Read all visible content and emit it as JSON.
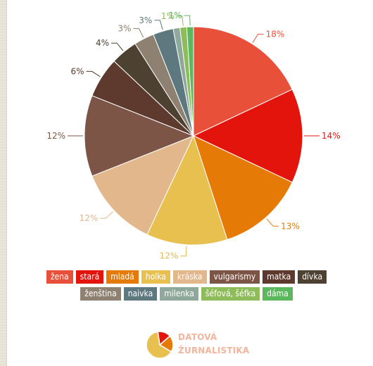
{
  "chart_data": {
    "type": "pie",
    "slices": [
      {
        "name": "žena",
        "value": 18,
        "label": "18%",
        "color": "#e8503a",
        "label_color": "#e8503a"
      },
      {
        "name": "stará",
        "value": 14,
        "label": "14%",
        "color": "#e3140c",
        "label_color": "#e3140c"
      },
      {
        "name": "mladá",
        "value": 13,
        "label": "13%",
        "color": "#e67a07",
        "label_color": "#e67a07"
      },
      {
        "name": "holka",
        "value": 12,
        "label": "12%",
        "color": "#e8c050",
        "label_color": "#e0b84c"
      },
      {
        "name": "kráska",
        "value": 12,
        "label": "12%",
        "color": "#e3b78c",
        "label_color": "#e3b78c"
      },
      {
        "name": "vulgarismy",
        "value": 12,
        "label": "12%",
        "color": "#7c5546",
        "label_color": "#7c5546"
      },
      {
        "name": "matka",
        "value": 6,
        "label": "6%",
        "color": "#5e3a2e",
        "label_color": "#5e3a2e"
      },
      {
        "name": "dívka",
        "value": 4,
        "label": "4%",
        "color": "#4d4131",
        "label_color": "#4d4131"
      },
      {
        "name": "ženština",
        "value": 3,
        "label": "3%",
        "color": "#8e8171",
        "label_color": "#8e8171"
      },
      {
        "name": "naivka",
        "value": 3,
        "label": "3%",
        "color": "#5e7880",
        "label_color": "#5e7880"
      },
      {
        "name": "milenka",
        "value": 1,
        "label": "",
        "color": "#8ea89b",
        "label_color": "#8ea89b"
      },
      {
        "name": "šéfová, šéfka",
        "value": 1,
        "label": "1%",
        "color": "#8fbc5a",
        "label_color": "#8fbc5a"
      },
      {
        "name": "dáma",
        "value": 1,
        "label": "1%",
        "color": "#5cb85c",
        "label_color": "#5cb85c"
      }
    ],
    "legend_placement": "bottom"
  },
  "legend": {
    "row1": [
      {
        "label": "žena",
        "color": "#e8503a"
      },
      {
        "label": "stará",
        "color": "#e3140c"
      },
      {
        "label": "mladá",
        "color": "#e67a07"
      },
      {
        "label": "holka",
        "color": "#e8c050"
      },
      {
        "label": "kráska",
        "color": "#e3b78c"
      },
      {
        "label": "vulgarismy",
        "color": "#7c5546"
      },
      {
        "label": "matka",
        "color": "#5e3a2e"
      },
      {
        "label": "dívka",
        "color": "#4d4131"
      }
    ],
    "row2": [
      {
        "label": "ženština",
        "color": "#8e8171"
      },
      {
        "label": "naivka",
        "color": "#5e7880"
      },
      {
        "label": "milenka",
        "color": "#8ea89b"
      },
      {
        "label": "šéfová, šéfka",
        "color": "#8fbc5a"
      },
      {
        "label": "dáma",
        "color": "#5cb85c"
      }
    ]
  },
  "logo": {
    "line1": "DATOVÁ",
    "line2": "ŽURNALISTIKA",
    "mark_colors": [
      "#e3140c",
      "#e67a07",
      "#e8c050"
    ]
  }
}
